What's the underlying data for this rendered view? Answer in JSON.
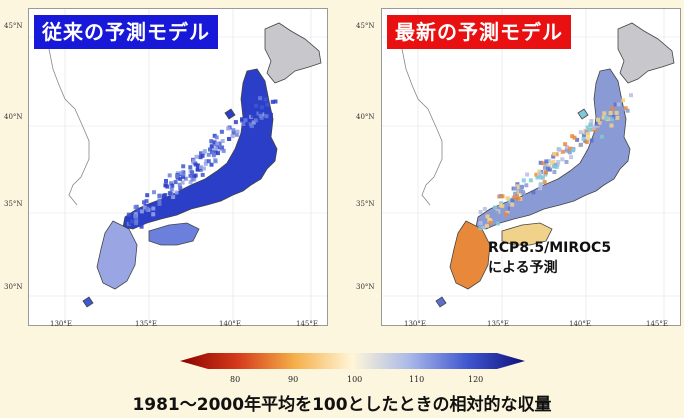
{
  "panels": [
    {
      "title": "従来の予測モデル",
      "title_bg": "#1818d8",
      "map_palette": [
        "#2a3ec8",
        "#3f56d0",
        "#6b7fdc",
        "#9aa6e4"
      ]
    },
    {
      "title": "最新の予測モデル",
      "title_bg": "#e81010",
      "map_palette": [
        "#8a9ad4",
        "#b7c0e4",
        "#f0d28a",
        "#e8883a",
        "#7ec8d8",
        "#5b6fd0"
      ]
    }
  ],
  "lat_labels": [
    "45°N",
    "40°N",
    "35°N",
    "30°N"
  ],
  "lon_labels": [
    "130°E",
    "135°E",
    "140°E",
    "145°E"
  ],
  "annotation": {
    "line1": "RCP8.5/MIROC5",
    "line2": "による予測"
  },
  "colorbar": {
    "ticks": [
      "80",
      "90",
      "100",
      "110",
      "120"
    ],
    "colors": [
      "#8b0000",
      "#d43a1a",
      "#f5b04a",
      "#fff6d8",
      "#a9b8e8",
      "#3f56d0",
      "#10107a"
    ]
  },
  "caption": "1981〜2000年平均を100としたときの相対的な収量"
}
